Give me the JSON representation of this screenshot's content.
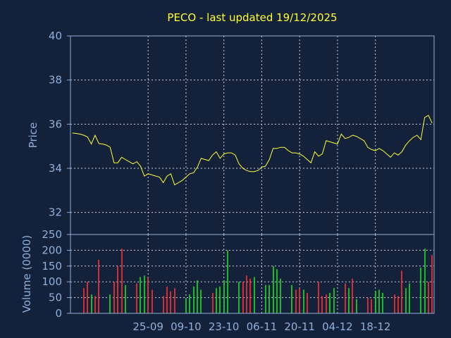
{
  "chart_data": [
    {
      "type": "line",
      "title": "PECO - last updated 19/12/2025",
      "ylabel": "Price",
      "ylim": [
        31,
        40
      ],
      "y_ticks": [
        "32",
        "34",
        "36",
        "38",
        "40"
      ],
      "x_ticks": [
        "25-09",
        "09-10",
        "23-10",
        "06-11",
        "20-11",
        "04-12",
        "18-12"
      ],
      "x_tick_positions": [
        20,
        30,
        40,
        50,
        60,
        70,
        80
      ],
      "grid": true,
      "line_color": "#ffff33",
      "series": [
        {
          "values": [
            35.6,
            35.58,
            35.55,
            35.5,
            35.42,
            35.1,
            35.5,
            35.12,
            35.1,
            35.05,
            34.95,
            34.25,
            34.25,
            34.5,
            34.4,
            34.3,
            34.2,
            34.3,
            34.1,
            33.65,
            33.75,
            33.7,
            33.65,
            33.6,
            33.35,
            33.65,
            33.75,
            33.25,
            33.35,
            33.45,
            33.6,
            33.75,
            33.8,
            34.05,
            34.45,
            34.4,
            34.35,
            34.6,
            34.75,
            34.45,
            34.65,
            34.7,
            34.7,
            34.6,
            34.2,
            34.0,
            33.9,
            33.85,
            33.85,
            33.9,
            34.05,
            34.1,
            34.4,
            34.9,
            34.9,
            34.95,
            34.95,
            34.8,
            34.7,
            34.7,
            34.65,
            34.55,
            34.4,
            34.25,
            34.75,
            34.55,
            34.65,
            35.25,
            35.2,
            35.15,
            35.1,
            35.55,
            35.35,
            35.4,
            35.5,
            35.45,
            35.35,
            35.25,
            34.95,
            34.85,
            34.8,
            34.9,
            34.8,
            34.65,
            34.5,
            34.7,
            34.6,
            34.75,
            35.05,
            35.25,
            35.4,
            35.5,
            35.3,
            36.3,
            36.4,
            36.05
          ]
        }
      ]
    },
    {
      "type": "bar",
      "ylabel": "Volume (0000)",
      "ylim": [
        0,
        250
      ],
      "y_ticks": [
        "0",
        "50",
        "100",
        "150",
        "200",
        "250"
      ],
      "grid": true,
      "colors": {
        "up": "#22dd22",
        "down": "#ff3333"
      },
      "series": [
        {
          "values": [
            0,
            0,
            0,
            80,
            100,
            60,
            55,
            170,
            0,
            0,
            60,
            100,
            150,
            205,
            90,
            0,
            0,
            95,
            115,
            120,
            115,
            75,
            0,
            0,
            55,
            85,
            70,
            80,
            0,
            0,
            45,
            60,
            85,
            105,
            75,
            0,
            0,
            65,
            80,
            85,
            105,
            200,
            0,
            0,
            100,
            100,
            120,
            110,
            115,
            0,
            0,
            90,
            90,
            150,
            140,
            110,
            0,
            0,
            90,
            75,
            80,
            75,
            65,
            0,
            0,
            100,
            55,
            60,
            65,
            80,
            0,
            0,
            95,
            80,
            110,
            45,
            0,
            0,
            50,
            45,
            70,
            75,
            65,
            0,
            0,
            60,
            55,
            135,
            80,
            95,
            0,
            0,
            145,
            205,
            100,
            185
          ],
          "up": [
            0,
            0,
            0,
            0,
            0,
            1,
            0,
            0,
            0,
            0,
            1,
            0,
            0,
            0,
            1,
            0,
            0,
            0,
            1,
            1,
            0,
            0,
            0,
            0,
            0,
            0,
            0,
            0,
            0,
            0,
            1,
            1,
            1,
            1,
            1,
            0,
            0,
            0,
            1,
            1,
            1,
            1,
            0,
            0,
            1,
            0,
            0,
            0,
            1,
            0,
            0,
            1,
            1,
            1,
            1,
            1,
            0,
            0,
            1,
            0,
            0,
            1,
            0,
            0,
            0,
            0,
            0,
            0,
            1,
            1,
            0,
            0,
            0,
            1,
            0,
            1,
            0,
            0,
            0,
            0,
            1,
            1,
            1,
            0,
            0,
            0,
            0,
            0,
            1,
            1,
            0,
            0,
            1,
            1,
            0,
            0
          ]
        }
      ]
    }
  ]
}
